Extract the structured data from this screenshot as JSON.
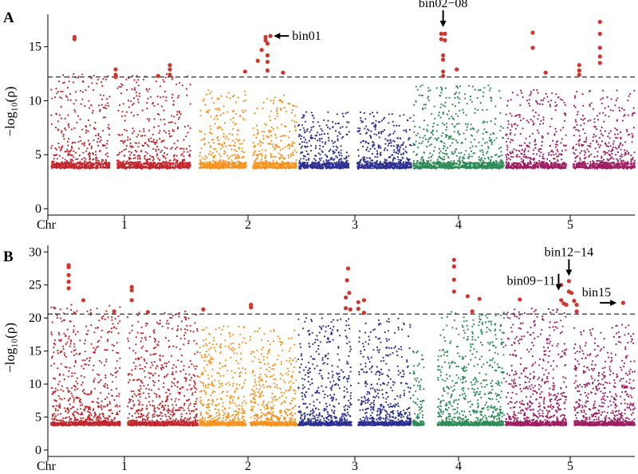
{
  "chart_data": [
    {
      "type": "scatter",
      "subtype": "manhattan",
      "panel": "A",
      "ylabel": "−log₁₀(ρ)",
      "xlabel_prefix": "Chr",
      "ylim": [
        0,
        18
      ],
      "yticks": [
        0,
        5,
        10,
        15
      ],
      "threshold": 12.2,
      "chromosomes": [
        {
          "label": "1",
          "color": "#c1272d",
          "segments": [
            [
              0.0,
              0.4,
              12.5
            ],
            [
              0.45,
              0.95,
              12.5
            ]
          ]
        },
        {
          "label": "2",
          "color": "#f7931e",
          "segments": [
            [
              0.0,
              0.48,
              11.0
            ],
            [
              0.55,
              1.0,
              10.5
            ]
          ]
        },
        {
          "label": "3",
          "color": "#2e3192",
          "segments": [
            [
              0.0,
              0.45,
              9.0
            ],
            [
              0.52,
              1.0,
              9.0
            ]
          ]
        },
        {
          "label": "4",
          "color": "#2e8b57",
          "segments": [
            [
              0.0,
              1.0,
              11.5
            ]
          ]
        },
        {
          "label": "5",
          "color": "#9e1f63",
          "segments": [
            [
              0.0,
              0.47,
              11.0
            ],
            [
              0.52,
              1.0,
              11.0
            ]
          ]
        }
      ],
      "significant_points": [
        {
          "chr": "1",
          "pos": 0.16,
          "y": 15.9
        },
        {
          "chr": "1",
          "pos": 0.16,
          "y": 15.7
        },
        {
          "chr": "1",
          "pos": 0.44,
          "y": 12.9
        },
        {
          "chr": "1",
          "pos": 0.44,
          "y": 12.4
        },
        {
          "chr": "1",
          "pos": 0.44,
          "y": 12.2
        },
        {
          "chr": "1",
          "pos": 0.73,
          "y": 12.3
        },
        {
          "chr": "1",
          "pos": 0.81,
          "y": 13.3
        },
        {
          "chr": "1",
          "pos": 0.81,
          "y": 12.9
        },
        {
          "chr": "1",
          "pos": 0.81,
          "y": 12.4
        },
        {
          "chr": "2",
          "pos": 0.47,
          "y": 12.7
        },
        {
          "chr": "2",
          "pos": 0.6,
          "y": 13.7
        },
        {
          "chr": "2",
          "pos": 0.64,
          "y": 14.7
        },
        {
          "chr": "2",
          "pos": 0.68,
          "y": 15.6
        },
        {
          "chr": "2",
          "pos": 0.68,
          "y": 15.9
        },
        {
          "chr": "2",
          "pos": 0.7,
          "y": 15.3
        },
        {
          "chr": "2",
          "pos": 0.7,
          "y": 14.2
        },
        {
          "chr": "2",
          "pos": 0.7,
          "y": 13.6
        },
        {
          "chr": "2",
          "pos": 0.7,
          "y": 12.8
        },
        {
          "chr": "2",
          "pos": 0.73,
          "y": 16.0
        },
        {
          "chr": "2",
          "pos": 0.86,
          "y": 12.6
        },
        {
          "chr": "4",
          "pos": 0.31,
          "y": 16.2
        },
        {
          "chr": "4",
          "pos": 0.35,
          "y": 16.2
        },
        {
          "chr": "4",
          "pos": 0.31,
          "y": 15.7
        },
        {
          "chr": "4",
          "pos": 0.35,
          "y": 15.6
        },
        {
          "chr": "4",
          "pos": 0.33,
          "y": 14.2
        },
        {
          "chr": "4",
          "pos": 0.33,
          "y": 13.8
        },
        {
          "chr": "4",
          "pos": 0.33,
          "y": 12.7
        },
        {
          "chr": "4",
          "pos": 0.33,
          "y": 12.3
        },
        {
          "chr": "4",
          "pos": 0.48,
          "y": 12.9
        },
        {
          "chr": "5",
          "pos": 0.21,
          "y": 16.3
        },
        {
          "chr": "5",
          "pos": 0.21,
          "y": 14.9
        },
        {
          "chr": "5",
          "pos": 0.31,
          "y": 12.6
        },
        {
          "chr": "5",
          "pos": 0.57,
          "y": 13.3
        },
        {
          "chr": "5",
          "pos": 0.57,
          "y": 12.8
        },
        {
          "chr": "5",
          "pos": 0.57,
          "y": 12.4
        },
        {
          "chr": "5",
          "pos": 0.73,
          "y": 17.3
        },
        {
          "chr": "5",
          "pos": 0.73,
          "y": 16.2
        },
        {
          "chr": "5",
          "pos": 0.73,
          "y": 14.9
        },
        {
          "chr": "5",
          "pos": 0.73,
          "y": 14.1
        },
        {
          "chr": "5",
          "pos": 0.73,
          "y": 13.5
        }
      ],
      "annotations": [
        {
          "text": "bin01",
          "chr": "2",
          "pos": 0.74,
          "y": 16.0,
          "arrow": "left"
        },
        {
          "text": "bin02−08",
          "chr": "4",
          "pos": 0.33,
          "y": 16.6,
          "arrow": "down"
        }
      ]
    },
    {
      "type": "scatter",
      "subtype": "manhattan",
      "panel": "B",
      "ylabel": "−log₁₀(ρ)",
      "xlabel_prefix": "Chr",
      "ylim": [
        0,
        31
      ],
      "yticks": [
        0,
        5,
        10,
        15,
        20,
        25,
        30
      ],
      "threshold": 20.6,
      "chromosomes": [
        {
          "label": "1",
          "color": "#c1272d",
          "segments": [
            [
              0.0,
              0.47,
              22.0
            ],
            [
              0.52,
              1.0,
              21.0
            ]
          ]
        },
        {
          "label": "2",
          "color": "#f7931e",
          "segments": [
            [
              0.0,
              0.48,
              19.0
            ],
            [
              0.52,
              1.0,
              18.5
            ]
          ]
        },
        {
          "label": "3",
          "color": "#2e3192",
          "segments": [
            [
              0.0,
              0.47,
              20.0
            ],
            [
              0.53,
              1.0,
              20.0
            ]
          ]
        },
        {
          "label": "4",
          "color": "#2e8b57",
          "segments": [
            [
              0.0,
              0.12,
              15.0
            ],
            [
              0.27,
              1.0,
              21.0
            ]
          ]
        },
        {
          "label": "5",
          "color": "#9e1f63",
          "segments": [
            [
              0.0,
              0.47,
              22.0
            ],
            [
              0.53,
              1.0,
              19.0
            ]
          ]
        }
      ],
      "significant_points": [
        {
          "chr": "1",
          "pos": 0.12,
          "y": 28.0
        },
        {
          "chr": "1",
          "pos": 0.12,
          "y": 27.7
        },
        {
          "chr": "1",
          "pos": 0.12,
          "y": 26.5
        },
        {
          "chr": "1",
          "pos": 0.12,
          "y": 25.5
        },
        {
          "chr": "1",
          "pos": 0.12,
          "y": 24.5
        },
        {
          "chr": "1",
          "pos": 0.22,
          "y": 22.7
        },
        {
          "chr": "1",
          "pos": 0.43,
          "y": 21.0
        },
        {
          "chr": "1",
          "pos": 0.55,
          "y": 24.7
        },
        {
          "chr": "1",
          "pos": 0.55,
          "y": 24.2
        },
        {
          "chr": "1",
          "pos": 0.55,
          "y": 22.7
        },
        {
          "chr": "1",
          "pos": 0.66,
          "y": 20.9
        },
        {
          "chr": "2",
          "pos": 0.04,
          "y": 21.3
        },
        {
          "chr": "2",
          "pos": 0.53,
          "y": 22.0
        },
        {
          "chr": "2",
          "pos": 0.53,
          "y": 21.6
        },
        {
          "chr": "3",
          "pos": 0.44,
          "y": 27.5
        },
        {
          "chr": "3",
          "pos": 0.43,
          "y": 25.7
        },
        {
          "chr": "3",
          "pos": 0.45,
          "y": 23.8
        },
        {
          "chr": "3",
          "pos": 0.42,
          "y": 23.1
        },
        {
          "chr": "3",
          "pos": 0.42,
          "y": 21.5
        },
        {
          "chr": "3",
          "pos": 0.46,
          "y": 21.3
        },
        {
          "chr": "3",
          "pos": 0.53,
          "y": 22.4
        },
        {
          "chr": "3",
          "pos": 0.53,
          "y": 21.4
        },
        {
          "chr": "3",
          "pos": 0.58,
          "y": 22.7
        },
        {
          "chr": "3",
          "pos": 0.58,
          "y": 20.8
        },
        {
          "chr": "4",
          "pos": 0.45,
          "y": 28.8
        },
        {
          "chr": "4",
          "pos": 0.45,
          "y": 27.8
        },
        {
          "chr": "4",
          "pos": 0.45,
          "y": 25.8
        },
        {
          "chr": "4",
          "pos": 0.45,
          "y": 24.0
        },
        {
          "chr": "4",
          "pos": 0.6,
          "y": 23.3
        },
        {
          "chr": "4",
          "pos": 0.65,
          "y": 21.0
        },
        {
          "chr": "4",
          "pos": 0.73,
          "y": 22.9
        },
        {
          "chr": "5",
          "pos": 0.11,
          "y": 22.8
        },
        {
          "chr": "5",
          "pos": 0.43,
          "y": 25.0
        },
        {
          "chr": "5",
          "pos": 0.43,
          "y": 22.7
        },
        {
          "chr": "5",
          "pos": 0.45,
          "y": 22.2
        },
        {
          "chr": "5",
          "pos": 0.47,
          "y": 22.0
        },
        {
          "chr": "5",
          "pos": 0.49,
          "y": 25.6
        },
        {
          "chr": "5",
          "pos": 0.49,
          "y": 24.0
        },
        {
          "chr": "5",
          "pos": 0.51,
          "y": 23.8
        },
        {
          "chr": "5",
          "pos": 0.53,
          "y": 22.6
        },
        {
          "chr": "5",
          "pos": 0.55,
          "y": 22.0
        },
        {
          "chr": "5",
          "pos": 0.55,
          "y": 21.0
        },
        {
          "chr": "5",
          "pos": 0.91,
          "y": 22.3
        }
      ],
      "annotations": [
        {
          "text": "bin09−11",
          "chr": "5",
          "pos": 0.41,
          "y": 23.8,
          "arrow": "down"
        },
        {
          "text": "bin12−14",
          "chr": "5",
          "pos": 0.49,
          "y": 26.0,
          "arrow": "down"
        },
        {
          "text": "bin15",
          "chr": "5",
          "pos": 0.89,
          "y": 22.3,
          "arrow": "right"
        }
      ]
    }
  ]
}
